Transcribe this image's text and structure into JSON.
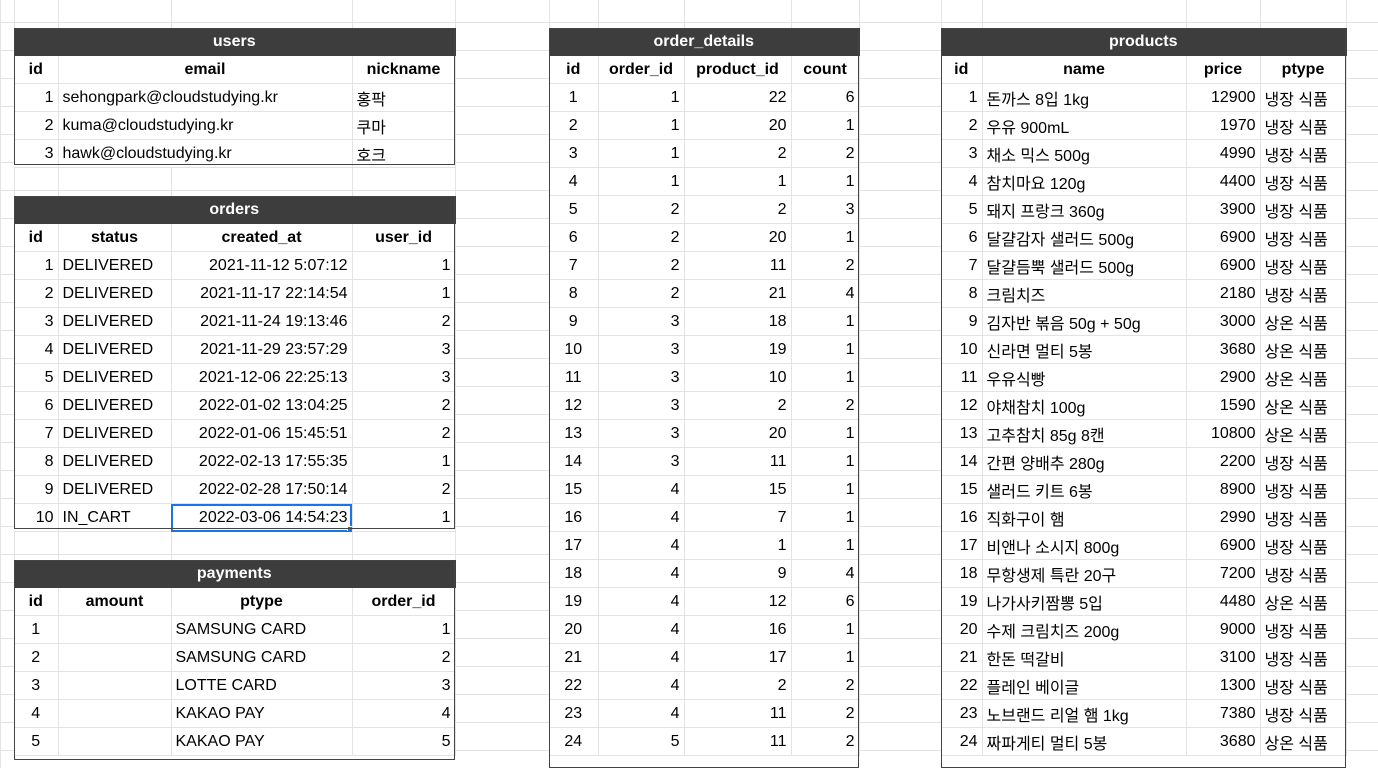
{
  "users": {
    "title": "users",
    "headers": [
      "id",
      "email",
      "nickname"
    ],
    "rows": [
      [
        "1",
        "sehongpark@cloudstudying.kr",
        "홍팍"
      ],
      [
        "2",
        "kuma@cloudstudying.kr",
        "쿠마"
      ],
      [
        "3",
        "hawk@cloudstudying.kr",
        "호크"
      ]
    ]
  },
  "orders": {
    "title": "orders",
    "headers": [
      "id",
      "status",
      "created_at",
      "user_id"
    ],
    "rows": [
      [
        "1",
        "DELIVERED",
        "2021-11-12 5:07:12",
        "1"
      ],
      [
        "2",
        "DELIVERED",
        "2021-11-17 22:14:54",
        "1"
      ],
      [
        "3",
        "DELIVERED",
        "2021-11-24 19:13:46",
        "2"
      ],
      [
        "4",
        "DELIVERED",
        "2021-11-29 23:57:29",
        "3"
      ],
      [
        "5",
        "DELIVERED",
        "2021-12-06 22:25:13",
        "3"
      ],
      [
        "6",
        "DELIVERED",
        "2022-01-02 13:04:25",
        "2"
      ],
      [
        "7",
        "DELIVERED",
        "2022-01-06 15:45:51",
        "2"
      ],
      [
        "8",
        "DELIVERED",
        "2022-02-13 17:55:35",
        "1"
      ],
      [
        "9",
        "DELIVERED",
        "2022-02-28 17:50:14",
        "2"
      ],
      [
        "10",
        "IN_CART",
        "2022-03-06 14:54:23",
        "1"
      ]
    ]
  },
  "payments": {
    "title": "payments",
    "headers": [
      "id",
      "amount",
      "ptype",
      "order_id"
    ],
    "rows": [
      [
        "1",
        "",
        "SAMSUNG CARD",
        "1"
      ],
      [
        "2",
        "",
        "SAMSUNG CARD",
        "2"
      ],
      [
        "3",
        "",
        "LOTTE CARD",
        "3"
      ],
      [
        "4",
        "",
        "KAKAO PAY",
        "4"
      ],
      [
        "5",
        "",
        "KAKAO PAY",
        "5"
      ]
    ]
  },
  "order_details": {
    "title": "order_details",
    "headers": [
      "id",
      "order_id",
      "product_id",
      "count"
    ],
    "rows": [
      [
        "1",
        "1",
        "22",
        "6"
      ],
      [
        "2",
        "1",
        "20",
        "1"
      ],
      [
        "3",
        "1",
        "2",
        "2"
      ],
      [
        "4",
        "1",
        "1",
        "1"
      ],
      [
        "5",
        "2",
        "2",
        "3"
      ],
      [
        "6",
        "2",
        "20",
        "1"
      ],
      [
        "7",
        "2",
        "11",
        "2"
      ],
      [
        "8",
        "2",
        "21",
        "4"
      ],
      [
        "9",
        "3",
        "18",
        "1"
      ],
      [
        "10",
        "3",
        "19",
        "1"
      ],
      [
        "11",
        "3",
        "10",
        "1"
      ],
      [
        "12",
        "3",
        "2",
        "2"
      ],
      [
        "13",
        "3",
        "20",
        "1"
      ],
      [
        "14",
        "3",
        "11",
        "1"
      ],
      [
        "15",
        "4",
        "15",
        "1"
      ],
      [
        "16",
        "4",
        "7",
        "1"
      ],
      [
        "17",
        "4",
        "1",
        "1"
      ],
      [
        "18",
        "4",
        "9",
        "4"
      ],
      [
        "19",
        "4",
        "12",
        "6"
      ],
      [
        "20",
        "4",
        "16",
        "1"
      ],
      [
        "21",
        "4",
        "17",
        "1"
      ],
      [
        "22",
        "4",
        "2",
        "2"
      ],
      [
        "23",
        "4",
        "11",
        "2"
      ],
      [
        "24",
        "5",
        "11",
        "2"
      ]
    ]
  },
  "products": {
    "title": "products",
    "headers": [
      "id",
      "name",
      "price",
      "ptype"
    ],
    "rows": [
      [
        "1",
        "돈까스 8입 1kg",
        "12900",
        "냉장 식품"
      ],
      [
        "2",
        "우유 900mL",
        "1970",
        "냉장 식품"
      ],
      [
        "3",
        "채소 믹스 500g",
        "4990",
        "냉장 식품"
      ],
      [
        "4",
        "참치마요 120g",
        "4400",
        "냉장 식품"
      ],
      [
        "5",
        "돼지 프랑크 360g",
        "3900",
        "냉장 식품"
      ],
      [
        "6",
        "달걀감자 샐러드 500g",
        "6900",
        "냉장 식품"
      ],
      [
        "7",
        "달걀듬뿍 샐러드 500g",
        "6900",
        "냉장 식품"
      ],
      [
        "8",
        "크림치즈",
        "2180",
        "냉장 식품"
      ],
      [
        "9",
        "김자반 볶음 50g + 50g",
        "3000",
        "상온 식품"
      ],
      [
        "10",
        "신라면 멀티 5봉",
        "3680",
        "상온 식품"
      ],
      [
        "11",
        "우유식빵",
        "2900",
        "상온 식품"
      ],
      [
        "12",
        "야채참치 100g",
        "1590",
        "상온 식품"
      ],
      [
        "13",
        "고추참치 85g 8캔",
        "10800",
        "상온 식품"
      ],
      [
        "14",
        "간편 양배추 280g",
        "2200",
        "냉장 식품"
      ],
      [
        "15",
        "샐러드 키트 6봉",
        "8900",
        "냉장 식품"
      ],
      [
        "16",
        "직화구이 햄",
        "2990",
        "냉장 식품"
      ],
      [
        "17",
        "비앤나 소시지 800g",
        "6900",
        "냉장 식품"
      ],
      [
        "18",
        "무항생제 특란 20구",
        "7200",
        "냉장 식품"
      ],
      [
        "19",
        "나가사키짬뽕 5입",
        "4480",
        "상온 식품"
      ],
      [
        "20",
        "수제 크림치즈 200g",
        "9000",
        "냉장 식품"
      ],
      [
        "21",
        "한돈 떡갈비",
        "3100",
        "냉장 식품"
      ],
      [
        "22",
        "플레인 베이글",
        "1300",
        "냉장 식품"
      ],
      [
        "23",
        "노브랜드 리얼 햄 1kg",
        "7380",
        "냉장 식품"
      ],
      [
        "24",
        "짜파게티 멀티 5봉",
        "3680",
        "상온 식품"
      ]
    ]
  }
}
